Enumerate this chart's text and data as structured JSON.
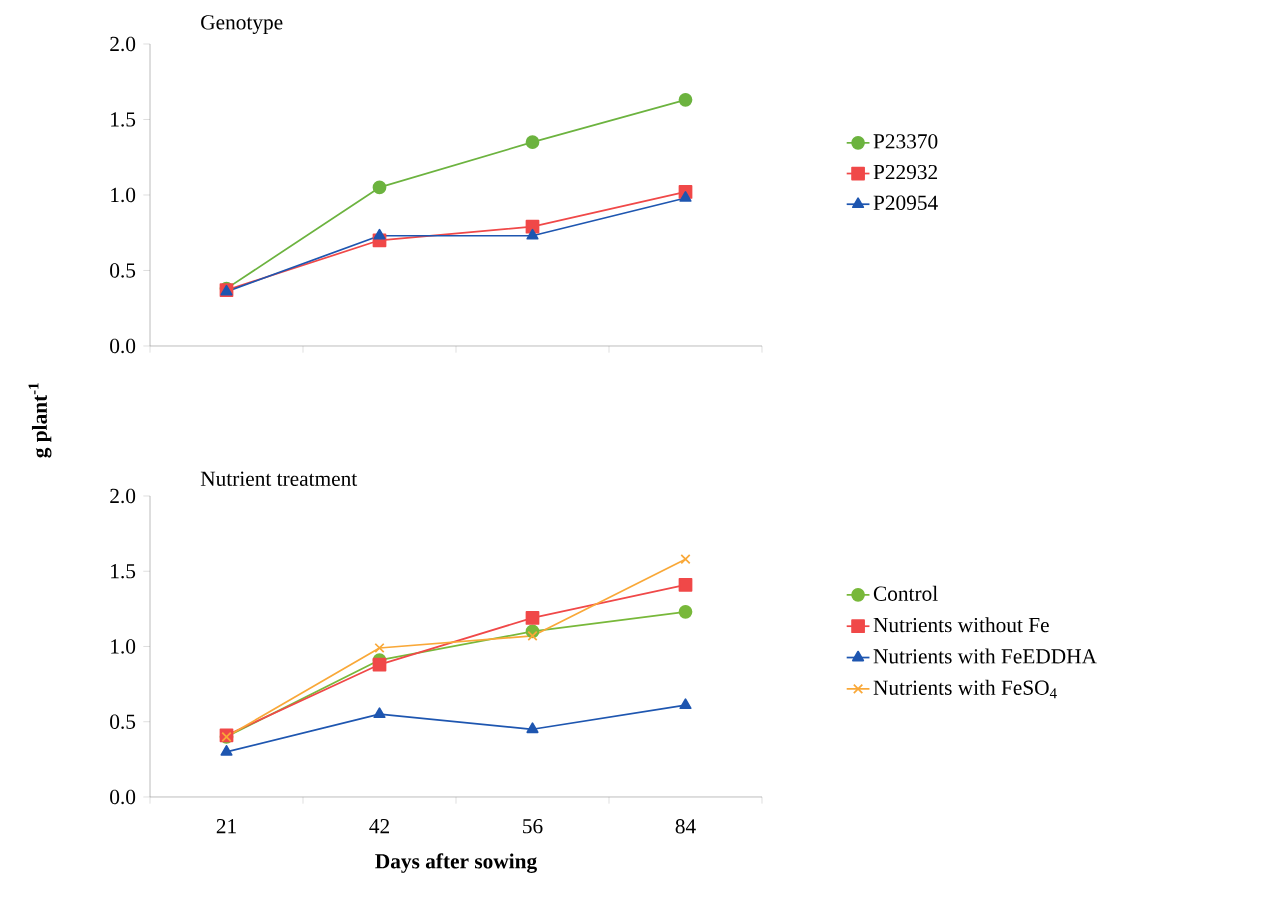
{
  "chart_data": [
    {
      "type": "line",
      "title": "Genotype",
      "ylabel": "**g plant$^{-1}$**",
      "categories": [
        "21",
        "42",
        "56",
        "84"
      ],
      "ylim": [
        0,
        2
      ],
      "yticks": [
        {
          "value": 0,
          "label": "0.0"
        },
        {
          "value": 0.5,
          "label": "0.5"
        },
        {
          "value": 1,
          "label": "1.0"
        },
        {
          "value": 1.5,
          "label": "1.5"
        },
        {
          "value": 2,
          "label": "2.0"
        }
      ],
      "tick_labels": "y",
      "legend": "right",
      "grid": false,
      "series": [
        {
          "name": "P23370",
          "color": "#6cb33f",
          "marker": "circle",
          "values": [
            0.38,
            1.05,
            1.35,
            1.63
          ]
        },
        {
          "name": "P22932",
          "color": "#f04848",
          "marker": "square",
          "values": [
            0.37,
            0.7,
            0.79,
            1.02
          ]
        },
        {
          "name": "P20954",
          "color": "#1e56b0",
          "marker": "triangle",
          "values": [
            0.36,
            0.73,
            0.73,
            0.98
          ]
        }
      ]
    },
    {
      "type": "line",
      "title": "Nutrient treatment",
      "xlabel": "Days after sowing",
      "categories": [
        "21",
        "42",
        "56",
        "84"
      ],
      "ylim": [
        0,
        2
      ],
      "yticks": [
        {
          "value": 0,
          "label": "0.0"
        },
        {
          "value": 0.5,
          "label": "0.5"
        },
        {
          "value": 1,
          "label": "1.0"
        },
        {
          "value": 1.5,
          "label": "1.5"
        },
        {
          "value": 2,
          "label": "2.0"
        }
      ],
      "legend": "right",
      "grid": false,
      "series": [
        {
          "name": "Control",
          "color": "#78b83a",
          "marker": "circle",
          "values": [
            0.4,
            0.91,
            1.1,
            1.23
          ]
        },
        {
          "name": "Nutrients without Fe",
          "color": "#f04848",
          "marker": "square",
          "values": [
            0.41,
            0.88,
            1.19,
            1.41
          ]
        },
        {
          "name": "Nutrients with FeEDDHA",
          "color": "#1e56b0",
          "marker": "triangle",
          "values": [
            0.3,
            0.55,
            0.45,
            0.61
          ]
        },
        {
          "name": "Nutrients with FeSO$_{4}$",
          "color": "#f9a838",
          "marker": "cross",
          "values": [
            0.4,
            0.99,
            1.07,
            1.58
          ]
        }
      ]
    }
  ]
}
